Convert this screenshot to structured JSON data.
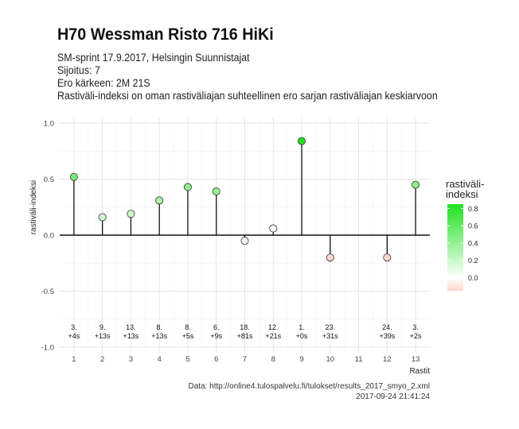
{
  "title": "H70 Wessman Risto 716 HiKi",
  "subtitle_lines": [
    "SM-sprint 17.9.2017, Helsingin Suunnistajat",
    "Sijoitus: 7",
    "Ero kärkeen: 2M 21S",
    "Rastiväli-indeksi on oman rastiväliajan suhteellinen ero sarjan rastiväliajan keskiarvoon"
  ],
  "caption_lines": [
    "Data: http://online4.tulospalvelu.fi/tulokset/results_2017_smyo_2.xml",
    "2017-09-24 21:41:24"
  ],
  "colors": {
    "low": "#fdd6cf",
    "mid": "#ffffff",
    "high": "#1fe01f",
    "grid": "#e6e6e6",
    "stem": "#111111"
  },
  "chart_data": {
    "type": "lollipop",
    "xlabel": "Rastit",
    "ylabel": "rastiväli-indeksi",
    "xlim": [
      0.5,
      13.5
    ],
    "ylim": [
      -1.05,
      1.05
    ],
    "x_ticks": [
      "1",
      "2",
      "3",
      "4",
      "5",
      "6",
      "7",
      "8",
      "9",
      "10",
      "11",
      "12",
      "13"
    ],
    "y_ticks": [
      {
        "value": 1.0,
        "label": "1.0"
      },
      {
        "value": 0.5,
        "label": "0.5"
      },
      {
        "value": 0.0,
        "label": "0.0"
      },
      {
        "value": -0.5,
        "label": "-0.5"
      },
      {
        "value": -1.0,
        "label": "-1.0"
      }
    ],
    "points": [
      {
        "x": 1,
        "y": 0.52,
        "rank": "3.",
        "diff": "+4s"
      },
      {
        "x": 2,
        "y": 0.16,
        "rank": "9.",
        "diff": "+13s"
      },
      {
        "x": 3,
        "y": 0.19,
        "rank": "13.",
        "diff": "+13s"
      },
      {
        "x": 4,
        "y": 0.31,
        "rank": "8.",
        "diff": "+13s"
      },
      {
        "x": 5,
        "y": 0.43,
        "rank": "8.",
        "diff": "+5s"
      },
      {
        "x": 6,
        "y": 0.39,
        "rank": "6.",
        "diff": "+9s"
      },
      {
        "x": 7,
        "y": -0.05,
        "rank": "18.",
        "diff": "+81s"
      },
      {
        "x": 8,
        "y": 0.06,
        "rank": "12.",
        "diff": "+21s"
      },
      {
        "x": 9,
        "y": 0.84,
        "rank": "1.",
        "diff": "+0s"
      },
      {
        "x": 10,
        "y": -0.2,
        "rank": "23.",
        "diff": "+31s"
      },
      {
        "x": 12,
        "y": -0.2,
        "rank": "24.",
        "diff": "+39s"
      },
      {
        "x": 13,
        "y": 0.45,
        "rank": "3.",
        "diff": "+2s"
      }
    ],
    "legend": {
      "title": "rastiväli-\nindeksi",
      "placement": "right",
      "range": [
        -0.15,
        0.85
      ],
      "ticks": [
        {
          "value": 0.8,
          "label": "0.8"
        },
        {
          "value": 0.6,
          "label": "0.6"
        },
        {
          "value": 0.4,
          "label": "0.4"
        },
        {
          "value": 0.2,
          "label": "0.2"
        },
        {
          "value": 0.0,
          "label": "0.0"
        }
      ]
    }
  }
}
